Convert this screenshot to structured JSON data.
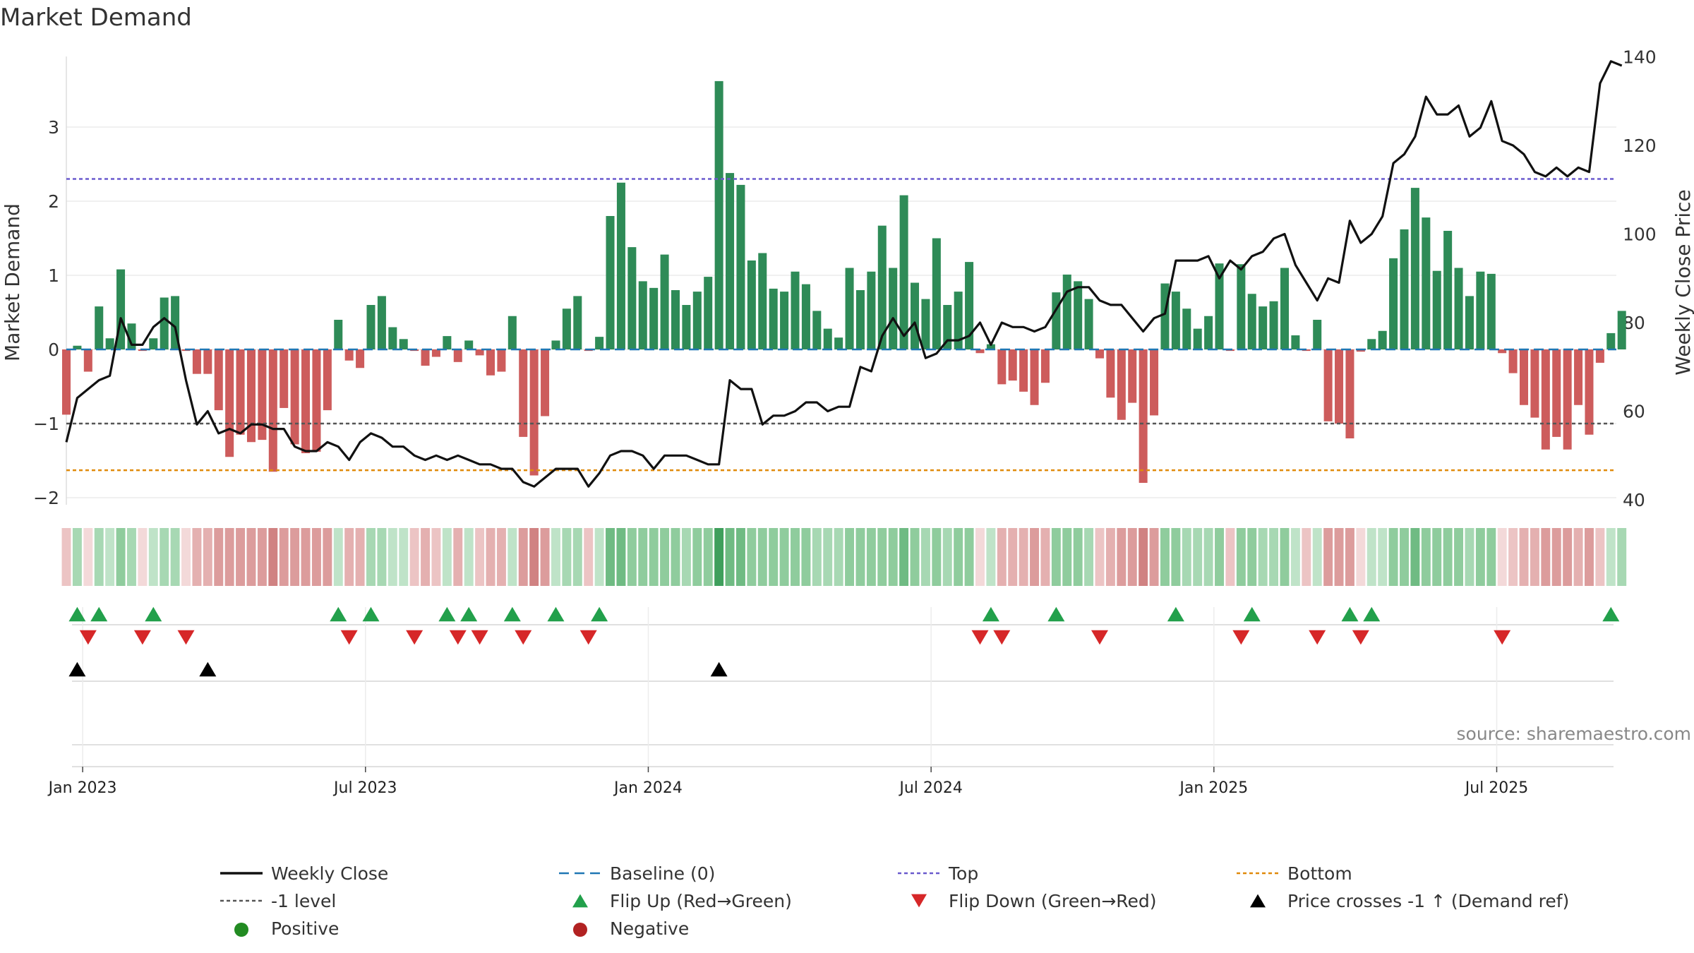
{
  "title": "Market Demand",
  "source": "source: sharemaestro.com",
  "colors": {
    "positive_bar": "#2e8b57",
    "negative_bar": "#cd5c5c",
    "price_line": "#111111",
    "baseline": "#1f77b4",
    "top": "#6a5acd",
    "bottom": "#e08a0b",
    "minus1": "#555555",
    "flip_up": "#22a04b",
    "flip_down": "#d62728",
    "cross": "#000000",
    "positive_dot": "#228b22",
    "negative_dot": "#b22222"
  },
  "chart_data": {
    "type": "bar",
    "title": "Market Demand",
    "ylabel": "Market Demand",
    "y2label": "Weekly Close Price",
    "ylim": [
      -2.2,
      3.9
    ],
    "y2lim": [
      38,
      140
    ],
    "yticks": [
      -2,
      -1,
      0,
      1,
      2,
      3
    ],
    "yticklabels": [
      "−2",
      "−1",
      "0",
      "1",
      "2",
      "3"
    ],
    "y2ticks": [
      40,
      60,
      80,
      100,
      120,
      140
    ],
    "xlim": [
      0,
      142.5
    ],
    "xticks": [
      1.5,
      27.5,
      53.5,
      79.5,
      105.5,
      131.5
    ],
    "xticklabels": [
      "Jan 2023",
      "Jul 2023",
      "Jan 2024",
      "Jul 2024",
      "Jan 2025",
      "Jul 2025"
    ],
    "reference_lines": {
      "baseline": 0,
      "top": 2.3,
      "bottom": -1.63,
      "minus1": -1.0
    },
    "demand": [
      -0.88,
      0.05,
      -0.3,
      0.58,
      0.15,
      1.08,
      0.35,
      -0.02,
      0.15,
      0.7,
      0.72,
      -0.02,
      -0.33,
      -0.33,
      -0.82,
      -1.45,
      -1.15,
      -1.25,
      -1.22,
      -1.65,
      -0.79,
      -1.28,
      -1.4,
      -1.38,
      -0.82,
      0.4,
      -0.15,
      -0.25,
      0.6,
      0.72,
      0.3,
      0.14,
      -0.02,
      -0.22,
      -0.1,
      0.18,
      -0.17,
      0.12,
      -0.08,
      -0.35,
      -0.3,
      0.45,
      -1.18,
      -1.7,
      -0.9,
      0.12,
      0.55,
      0.72,
      -0.02,
      0.17,
      1.8,
      2.25,
      1.38,
      0.92,
      0.83,
      1.28,
      0.8,
      0.6,
      0.78,
      0.98,
      3.62,
      2.38,
      2.22,
      1.2,
      1.3,
      0.82,
      0.78,
      1.05,
      0.88,
      0.52,
      0.28,
      0.16,
      1.1,
      0.8,
      1.05,
      1.67,
      1.1,
      2.08,
      0.9,
      0.68,
      1.5,
      0.6,
      0.78,
      1.18,
      -0.05,
      0.07,
      -0.47,
      -0.42,
      -0.57,
      -0.75,
      -0.45,
      0.77,
      1.01,
      0.92,
      0.68,
      -0.12,
      -0.65,
      -0.95,
      -0.72,
      -1.8,
      -0.89,
      0.89,
      0.78,
      0.55,
      0.28,
      0.45,
      1.16,
      -0.02,
      1.15,
      0.75,
      0.58,
      0.65,
      1.1,
      0.19,
      -0.02,
      0.4,
      -0.97,
      -1.0,
      -1.2,
      -0.03,
      0.14,
      0.25,
      1.23,
      1.62,
      2.18,
      1.78,
      1.06,
      1.6,
      1.1,
      0.72,
      1.05,
      1.02,
      -0.05,
      -0.32,
      -0.75,
      -0.92,
      -1.35,
      -1.18,
      -1.35,
      -0.75,
      -1.15,
      -0.18,
      0.22,
      0.52
    ],
    "weekly_close": [
      53,
      63,
      65,
      67,
      68,
      81,
      75,
      75,
      79,
      81,
      79,
      67,
      57,
      60,
      55,
      56,
      55,
      57,
      57,
      56,
      56,
      52,
      51,
      51,
      53,
      52,
      49,
      53,
      55,
      54,
      52,
      52,
      50,
      49,
      50,
      49,
      50,
      49,
      48,
      48,
      47,
      47,
      44,
      43,
      45,
      47,
      47,
      47,
      43,
      46,
      50,
      51,
      51,
      50,
      47,
      50,
      50,
      50,
      49,
      48,
      48,
      67,
      65,
      65,
      57,
      59,
      59,
      60,
      62,
      62,
      60,
      61,
      61,
      70,
      69,
      77,
      81,
      77,
      80,
      72,
      73,
      76,
      76,
      77,
      80,
      75,
      80,
      79,
      79,
      78,
      79,
      83,
      87,
      88,
      88,
      85,
      84,
      84,
      81,
      78,
      81,
      82,
      94,
      94,
      94,
      95,
      90,
      94,
      92,
      95,
      96,
      99,
      100,
      93,
      89,
      85,
      90,
      89,
      103,
      98,
      100,
      104,
      116,
      118,
      122,
      131,
      127,
      127,
      129,
      122,
      124,
      130,
      121,
      120,
      118,
      114,
      113,
      115,
      113,
      115,
      114,
      134,
      139,
      138
    ],
    "heat_shade": [
      1,
      2,
      0,
      2,
      1,
      3,
      2,
      0,
      1,
      2,
      2,
      0,
      2,
      2,
      3,
      3,
      3,
      3,
      3,
      4,
      3,
      3,
      3,
      3,
      3,
      1,
      2,
      2,
      2,
      2,
      1,
      1,
      1,
      2,
      1,
      1,
      2,
      1,
      1,
      2,
      2,
      1,
      3,
      4,
      3,
      1,
      2,
      2,
      1,
      1,
      4,
      4,
      3,
      3,
      3,
      3,
      3,
      2,
      3,
      3,
      5,
      4,
      4,
      3,
      3,
      3,
      3,
      3,
      3,
      2,
      2,
      2,
      3,
      3,
      3,
      3,
      3,
      4,
      3,
      2,
      3,
      2,
      3,
      3,
      0,
      1,
      2,
      2,
      2,
      3,
      2,
      3,
      3,
      3,
      2,
      1,
      2,
      3,
      3,
      4,
      3,
      3,
      3,
      2,
      2,
      2,
      3,
      1,
      3,
      3,
      2,
      2,
      3,
      1,
      1,
      1,
      3,
      3,
      3,
      0,
      1,
      1,
      3,
      3,
      4,
      3,
      3,
      3,
      3,
      2,
      3,
      3,
      0,
      1,
      2,
      2,
      3,
      3,
      3,
      2,
      3,
      1,
      1,
      2
    ],
    "flip_up_x": [
      1,
      3,
      8,
      25,
      28,
      35,
      37,
      41,
      45,
      49,
      85,
      91,
      102,
      109,
      118,
      120,
      142
    ],
    "flip_down_x": [
      2,
      7,
      11,
      26,
      32,
      36,
      38,
      42,
      48,
      84,
      86,
      95,
      108,
      115,
      119,
      132
    ],
    "price_cross_x": [
      1,
      13,
      60
    ]
  },
  "legend": [
    {
      "label": "Weekly Close",
      "kind": "line-solid",
      "color_key": "price_line"
    },
    {
      "label": "Baseline (0)",
      "kind": "line-dash",
      "color_key": "baseline"
    },
    {
      "label": "Top",
      "kind": "line-dot",
      "color_key": "top"
    },
    {
      "label": "Bottom",
      "kind": "line-dot",
      "color_key": "bottom"
    },
    {
      "label": "-1 level",
      "kind": "line-dot",
      "color_key": "minus1"
    },
    {
      "label": "Flip Up (Red→Green)",
      "kind": "tri-up",
      "color_key": "flip_up"
    },
    {
      "label": "Flip Down (Green→Red)",
      "kind": "tri-down",
      "color_key": "flip_down"
    },
    {
      "label": "Price crosses -1 ↑ (Demand ref)",
      "kind": "tri-up",
      "color_key": "cross"
    },
    {
      "label": "Positive",
      "kind": "dot",
      "color_key": "positive_dot"
    },
    {
      "label": "Negative",
      "kind": "dot",
      "color_key": "negative_dot"
    }
  ]
}
